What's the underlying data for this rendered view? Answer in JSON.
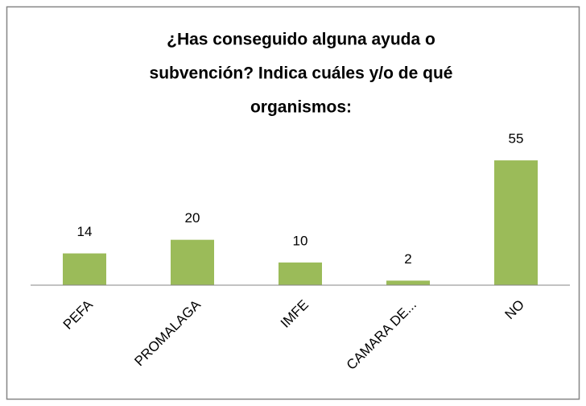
{
  "chart_data": {
    "type": "bar",
    "title": [
      "¿Has conseguido alguna ayuda o",
      "subvención? Indica cuáles y/o de qué",
      "organismos:"
    ],
    "categories": [
      "PEFA",
      "PROMALAGA",
      "IMFE",
      "CAMARA DE...",
      "NO"
    ],
    "values": [
      14,
      20,
      10,
      2,
      55
    ],
    "color": "#9bbb59",
    "ylim": [
      0,
      60
    ]
  }
}
